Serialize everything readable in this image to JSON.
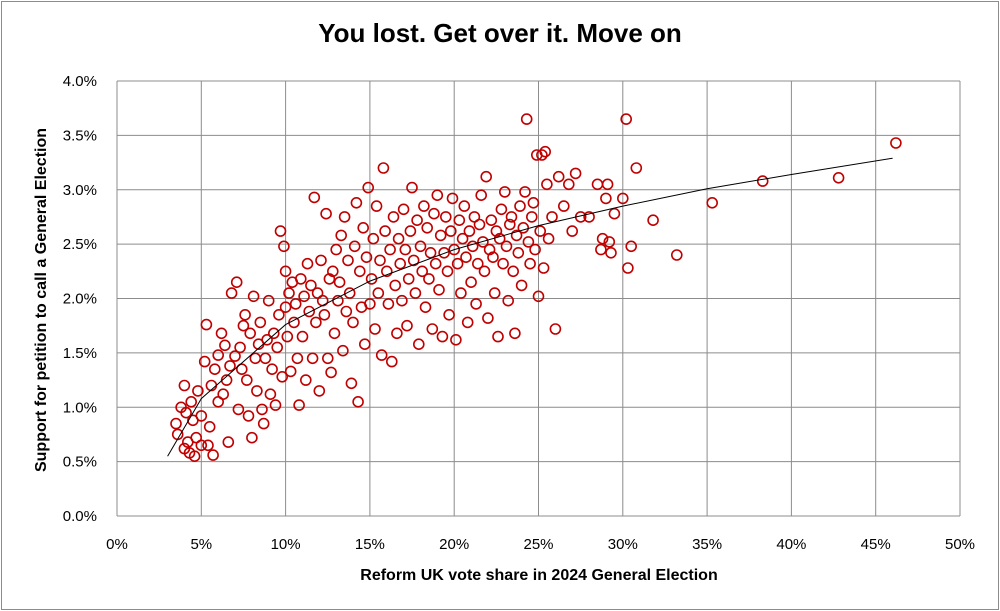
{
  "chart_data": {
    "type": "scatter",
    "title": "You lost. Get over it. Move on",
    "xlabel": "Reform UK vote share in 2024 General Election",
    "ylabel": "Support for petition to call a General Election",
    "xlim": [
      0,
      0.5
    ],
    "ylim": [
      0,
      0.04
    ],
    "x_ticks": [
      "0%",
      "5%",
      "10%",
      "15%",
      "20%",
      "25%",
      "30%",
      "35%",
      "40%",
      "45%",
      "50%"
    ],
    "y_ticks": [
      "0.0%",
      "0.5%",
      "1.0%",
      "1.5%",
      "2.0%",
      "2.5%",
      "3.0%",
      "3.5%",
      "4.0%"
    ],
    "grid": true,
    "legend": "none",
    "marker_color": "#c00000",
    "trendline_color": "#000000",
    "trendline": {
      "type": "logarithmic",
      "x_range": [
        0.03,
        0.46
      ],
      "points": [
        [
          0.03,
          0.0055
        ],
        [
          0.05,
          0.0108
        ],
        [
          0.1,
          0.0176
        ],
        [
          0.15,
          0.0216
        ],
        [
          0.2,
          0.0245
        ],
        [
          0.25,
          0.0267
        ],
        [
          0.3,
          0.0285
        ],
        [
          0.35,
          0.0301
        ],
        [
          0.4,
          0.0314
        ],
        [
          0.46,
          0.0329
        ]
      ]
    },
    "points": [
      [
        0.035,
        0.0085
      ],
      [
        0.036,
        0.0075
      ],
      [
        0.038,
        0.01
      ],
      [
        0.04,
        0.0062
      ],
      [
        0.04,
        0.012
      ],
      [
        0.041,
        0.0095
      ],
      [
        0.042,
        0.0068
      ],
      [
        0.043,
        0.0058
      ],
      [
        0.044,
        0.0105
      ],
      [
        0.045,
        0.0088
      ],
      [
        0.046,
        0.0055
      ],
      [
        0.047,
        0.0072
      ],
      [
        0.048,
        0.0115
      ],
      [
        0.05,
        0.0065
      ],
      [
        0.05,
        0.0092
      ],
      [
        0.052,
        0.0142
      ],
      [
        0.053,
        0.0176
      ],
      [
        0.054,
        0.0065
      ],
      [
        0.055,
        0.0082
      ],
      [
        0.056,
        0.012
      ],
      [
        0.057,
        0.0056
      ],
      [
        0.058,
        0.0135
      ],
      [
        0.06,
        0.0148
      ],
      [
        0.06,
        0.0105
      ],
      [
        0.062,
        0.0168
      ],
      [
        0.063,
        0.0112
      ],
      [
        0.064,
        0.0157
      ],
      [
        0.065,
        0.0125
      ],
      [
        0.066,
        0.0068
      ],
      [
        0.067,
        0.0138
      ],
      [
        0.068,
        0.0205
      ],
      [
        0.07,
        0.0147
      ],
      [
        0.071,
        0.0215
      ],
      [
        0.072,
        0.0098
      ],
      [
        0.073,
        0.0155
      ],
      [
        0.074,
        0.0135
      ],
      [
        0.075,
        0.0175
      ],
      [
        0.076,
        0.0185
      ],
      [
        0.077,
        0.0125
      ],
      [
        0.078,
        0.0092
      ],
      [
        0.079,
        0.0168
      ],
      [
        0.08,
        0.0072
      ],
      [
        0.081,
        0.0202
      ],
      [
        0.082,
        0.0145
      ],
      [
        0.083,
        0.0115
      ],
      [
        0.084,
        0.0158
      ],
      [
        0.085,
        0.0178
      ],
      [
        0.086,
        0.0098
      ],
      [
        0.087,
        0.0085
      ],
      [
        0.088,
        0.0145
      ],
      [
        0.089,
        0.0162
      ],
      [
        0.09,
        0.0198
      ],
      [
        0.091,
        0.0112
      ],
      [
        0.092,
        0.0135
      ],
      [
        0.093,
        0.0168
      ],
      [
        0.094,
        0.0102
      ],
      [
        0.095,
        0.0155
      ],
      [
        0.096,
        0.0185
      ],
      [
        0.097,
        0.0262
      ],
      [
        0.098,
        0.0128
      ],
      [
        0.099,
        0.0248
      ],
      [
        0.1,
        0.0225
      ],
      [
        0.1,
        0.0192
      ],
      [
        0.101,
        0.0165
      ],
      [
        0.102,
        0.0205
      ],
      [
        0.103,
        0.0133
      ],
      [
        0.104,
        0.0215
      ],
      [
        0.105,
        0.0178
      ],
      [
        0.106,
        0.0195
      ],
      [
        0.107,
        0.0145
      ],
      [
        0.108,
        0.0102
      ],
      [
        0.109,
        0.0218
      ],
      [
        0.11,
        0.0165
      ],
      [
        0.111,
        0.0202
      ],
      [
        0.112,
        0.0125
      ],
      [
        0.113,
        0.0232
      ],
      [
        0.114,
        0.0188
      ],
      [
        0.115,
        0.0212
      ],
      [
        0.116,
        0.0145
      ],
      [
        0.117,
        0.0293
      ],
      [
        0.118,
        0.0178
      ],
      [
        0.119,
        0.0205
      ],
      [
        0.12,
        0.0115
      ],
      [
        0.121,
        0.0235
      ],
      [
        0.122,
        0.0198
      ],
      [
        0.123,
        0.0185
      ],
      [
        0.124,
        0.0278
      ],
      [
        0.125,
        0.0145
      ],
      [
        0.126,
        0.0218
      ],
      [
        0.127,
        0.0132
      ],
      [
        0.128,
        0.0225
      ],
      [
        0.129,
        0.0168
      ],
      [
        0.13,
        0.0245
      ],
      [
        0.131,
        0.0198
      ],
      [
        0.132,
        0.0215
      ],
      [
        0.133,
        0.0258
      ],
      [
        0.134,
        0.0152
      ],
      [
        0.135,
        0.0275
      ],
      [
        0.136,
        0.0188
      ],
      [
        0.137,
        0.0235
      ],
      [
        0.138,
        0.0205
      ],
      [
        0.139,
        0.0122
      ],
      [
        0.14,
        0.0178
      ],
      [
        0.141,
        0.0248
      ],
      [
        0.142,
        0.0288
      ],
      [
        0.143,
        0.0105
      ],
      [
        0.144,
        0.0225
      ],
      [
        0.145,
        0.0192
      ],
      [
        0.146,
        0.0265
      ],
      [
        0.147,
        0.0158
      ],
      [
        0.148,
        0.0238
      ],
      [
        0.149,
        0.0302
      ],
      [
        0.15,
        0.0195
      ],
      [
        0.151,
        0.0218
      ],
      [
        0.152,
        0.0255
      ],
      [
        0.153,
        0.0172
      ],
      [
        0.154,
        0.0285
      ],
      [
        0.155,
        0.0205
      ],
      [
        0.156,
        0.0235
      ],
      [
        0.157,
        0.0148
      ],
      [
        0.158,
        0.032
      ],
      [
        0.159,
        0.0262
      ],
      [
        0.16,
        0.0225
      ],
      [
        0.161,
        0.0195
      ],
      [
        0.162,
        0.0245
      ],
      [
        0.163,
        0.0142
      ],
      [
        0.164,
        0.0275
      ],
      [
        0.165,
        0.0212
      ],
      [
        0.166,
        0.0168
      ],
      [
        0.167,
        0.0255
      ],
      [
        0.168,
        0.0232
      ],
      [
        0.169,
        0.0198
      ],
      [
        0.17,
        0.0282
      ],
      [
        0.171,
        0.0245
      ],
      [
        0.172,
        0.0175
      ],
      [
        0.173,
        0.0218
      ],
      [
        0.174,
        0.0262
      ],
      [
        0.175,
        0.0302
      ],
      [
        0.176,
        0.0235
      ],
      [
        0.177,
        0.0205
      ],
      [
        0.178,
        0.0272
      ],
      [
        0.179,
        0.0158
      ],
      [
        0.18,
        0.0248
      ],
      [
        0.181,
        0.0225
      ],
      [
        0.182,
        0.0285
      ],
      [
        0.183,
        0.0192
      ],
      [
        0.184,
        0.0265
      ],
      [
        0.185,
        0.0218
      ],
      [
        0.186,
        0.0242
      ],
      [
        0.187,
        0.0172
      ],
      [
        0.188,
        0.0278
      ],
      [
        0.189,
        0.0232
      ],
      [
        0.19,
        0.0295
      ],
      [
        0.191,
        0.0208
      ],
      [
        0.192,
        0.0258
      ],
      [
        0.193,
        0.0165
      ],
      [
        0.194,
        0.0242
      ],
      [
        0.195,
        0.0275
      ],
      [
        0.196,
        0.0225
      ],
      [
        0.197,
        0.0185
      ],
      [
        0.198,
        0.0262
      ],
      [
        0.199,
        0.0292
      ],
      [
        0.2,
        0.0245
      ],
      [
        0.201,
        0.0162
      ],
      [
        0.202,
        0.0232
      ],
      [
        0.203,
        0.0272
      ],
      [
        0.204,
        0.0205
      ],
      [
        0.205,
        0.0255
      ],
      [
        0.206,
        0.0285
      ],
      [
        0.207,
        0.0238
      ],
      [
        0.208,
        0.0178
      ],
      [
        0.209,
        0.0262
      ],
      [
        0.21,
        0.0215
      ],
      [
        0.211,
        0.0248
      ],
      [
        0.212,
        0.0275
      ],
      [
        0.213,
        0.0195
      ],
      [
        0.214,
        0.0232
      ],
      [
        0.215,
        0.0268
      ],
      [
        0.216,
        0.0295
      ],
      [
        0.217,
        0.0252
      ],
      [
        0.218,
        0.0225
      ],
      [
        0.219,
        0.0312
      ],
      [
        0.22,
        0.0182
      ],
      [
        0.221,
        0.0245
      ],
      [
        0.222,
        0.0272
      ],
      [
        0.223,
        0.0238
      ],
      [
        0.224,
        0.0205
      ],
      [
        0.225,
        0.0262
      ],
      [
        0.226,
        0.0165
      ],
      [
        0.227,
        0.0255
      ],
      [
        0.228,
        0.0282
      ],
      [
        0.229,
        0.0232
      ],
      [
        0.23,
        0.0298
      ],
      [
        0.231,
        0.0248
      ],
      [
        0.232,
        0.0198
      ],
      [
        0.233,
        0.0268
      ],
      [
        0.234,
        0.0275
      ],
      [
        0.235,
        0.0225
      ],
      [
        0.236,
        0.0168
      ],
      [
        0.237,
        0.0258
      ],
      [
        0.238,
        0.0242
      ],
      [
        0.239,
        0.0285
      ],
      [
        0.24,
        0.0212
      ],
      [
        0.241,
        0.0265
      ],
      [
        0.242,
        0.0298
      ],
      [
        0.243,
        0.0365
      ],
      [
        0.244,
        0.0252
      ],
      [
        0.245,
        0.0232
      ],
      [
        0.246,
        0.0275
      ],
      [
        0.247,
        0.0288
      ],
      [
        0.248,
        0.0245
      ],
      [
        0.249,
        0.0332
      ],
      [
        0.25,
        0.0202
      ],
      [
        0.251,
        0.0262
      ],
      [
        0.252,
        0.0332
      ],
      [
        0.253,
        0.0228
      ],
      [
        0.254,
        0.0335
      ],
      [
        0.255,
        0.0305
      ],
      [
        0.256,
        0.0255
      ],
      [
        0.258,
        0.0275
      ],
      [
        0.26,
        0.0172
      ],
      [
        0.262,
        0.0312
      ],
      [
        0.265,
        0.0285
      ],
      [
        0.268,
        0.0305
      ],
      [
        0.27,
        0.0262
      ],
      [
        0.272,
        0.0315
      ],
      [
        0.275,
        0.0275
      ],
      [
        0.28,
        0.0275
      ],
      [
        0.285,
        0.0305
      ],
      [
        0.287,
        0.0245
      ],
      [
        0.288,
        0.0255
      ],
      [
        0.29,
        0.0292
      ],
      [
        0.291,
        0.0305
      ],
      [
        0.292,
        0.0252
      ],
      [
        0.293,
        0.0242
      ],
      [
        0.295,
        0.0278
      ],
      [
        0.3,
        0.0292
      ],
      [
        0.302,
        0.0365
      ],
      [
        0.303,
        0.0228
      ],
      [
        0.305,
        0.0248
      ],
      [
        0.308,
        0.032
      ],
      [
        0.318,
        0.0272
      ],
      [
        0.332,
        0.024
      ],
      [
        0.353,
        0.0288
      ],
      [
        0.383,
        0.0308
      ],
      [
        0.428,
        0.0311
      ],
      [
        0.462,
        0.0343
      ]
    ]
  }
}
